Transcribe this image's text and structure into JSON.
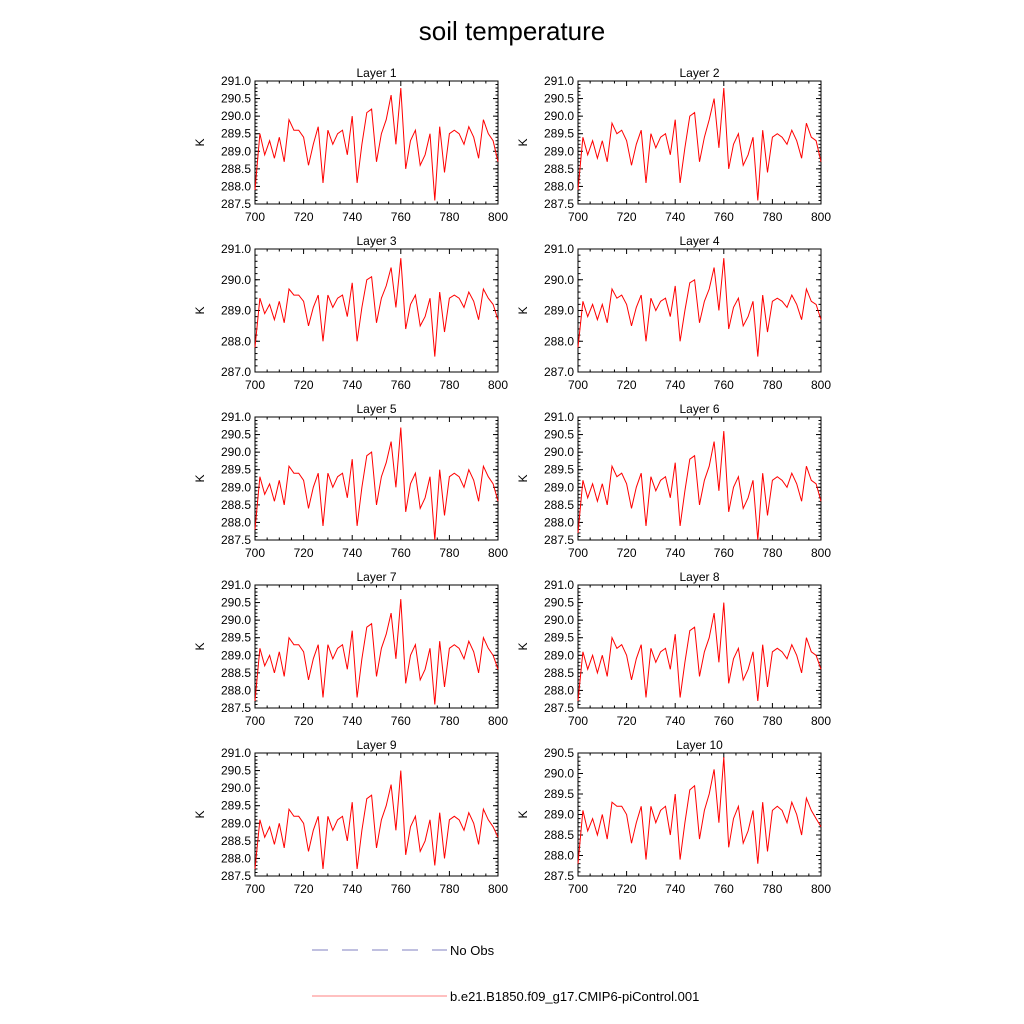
{
  "title": "soil temperature",
  "legend": [
    {
      "label": "No Obs",
      "color": "#8080c0",
      "style": "dashed"
    },
    {
      "label": "b.e21.B1850.f09_g17.CMIP6-piControl.001",
      "color": "#ff8080",
      "style": "solid"
    }
  ],
  "colors": {
    "series": "#ff0000"
  },
  "chart_data": [
    {
      "type": "line",
      "title": "Layer 1",
      "ylabel": "K",
      "xlim": [
        700,
        800
      ],
      "ylim": [
        287.5,
        291.0
      ],
      "xticks": [
        "700",
        "720",
        "740",
        "760",
        "780",
        "800"
      ],
      "yticks": [
        "287.5",
        "288.0",
        "288.5",
        "289.0",
        "289.5",
        "290.0",
        "290.5",
        "291.0"
      ],
      "x_start": 700,
      "x_step": 2,
      "series": [
        {
          "values": [
            287.9,
            289.5,
            288.9,
            289.3,
            288.8,
            289.4,
            288.7,
            289.9,
            289.6,
            289.6,
            289.4,
            288.6,
            289.2,
            289.7,
            288.1,
            289.6,
            289.2,
            289.5,
            289.6,
            288.9,
            290.0,
            288.1,
            289.2,
            290.1,
            290.2,
            288.7,
            289.5,
            289.9,
            290.6,
            289.2,
            290.8,
            288.5,
            289.3,
            289.6,
            288.6,
            288.9,
            289.5,
            287.6,
            289.7,
            288.4,
            289.5,
            289.6,
            289.5,
            289.2,
            289.7,
            289.4,
            288.8,
            289.9,
            289.5,
            289.3,
            288.7
          ]
        }
      ]
    },
    {
      "type": "line",
      "title": "Layer 2",
      "ylabel": "K",
      "xlim": [
        700,
        800
      ],
      "ylim": [
        287.5,
        291.0
      ],
      "xticks": [
        "700",
        "720",
        "740",
        "760",
        "780",
        "800"
      ],
      "yticks": [
        "287.5",
        "288.0",
        "288.5",
        "289.0",
        "289.5",
        "290.0",
        "290.5",
        "291.0"
      ],
      "x_start": 700,
      "x_step": 2,
      "series": [
        {
          "values": [
            287.9,
            289.4,
            288.9,
            289.3,
            288.8,
            289.3,
            288.7,
            289.8,
            289.5,
            289.6,
            289.3,
            288.6,
            289.2,
            289.6,
            288.1,
            289.5,
            289.1,
            289.4,
            289.5,
            288.9,
            289.9,
            288.1,
            289.1,
            290.0,
            290.1,
            288.7,
            289.4,
            289.9,
            290.5,
            289.1,
            290.8,
            288.5,
            289.2,
            289.5,
            288.6,
            288.9,
            289.4,
            287.6,
            289.6,
            288.4,
            289.4,
            289.5,
            289.4,
            289.2,
            289.6,
            289.3,
            288.8,
            289.8,
            289.4,
            289.3,
            288.7
          ]
        }
      ]
    },
    {
      "type": "line",
      "title": "Layer 3",
      "ylabel": "K",
      "xlim": [
        700,
        800
      ],
      "ylim": [
        287.0,
        291.0
      ],
      "xticks": [
        "700",
        "720",
        "740",
        "760",
        "780",
        "800"
      ],
      "yticks": [
        "287.0",
        "288.0",
        "289.0",
        "290.0",
        "291.0"
      ],
      "x_start": 700,
      "x_step": 2,
      "series": [
        {
          "values": [
            287.8,
            289.4,
            288.9,
            289.2,
            288.7,
            289.3,
            288.6,
            289.7,
            289.5,
            289.5,
            289.3,
            288.5,
            289.1,
            289.5,
            288.0,
            289.5,
            289.1,
            289.4,
            289.5,
            288.8,
            289.9,
            288.0,
            289.1,
            290.0,
            290.1,
            288.6,
            289.4,
            289.8,
            290.4,
            289.1,
            290.7,
            288.4,
            289.2,
            289.5,
            288.5,
            288.8,
            289.4,
            287.5,
            289.6,
            288.3,
            289.4,
            289.5,
            289.4,
            289.1,
            289.6,
            289.3,
            288.7,
            289.7,
            289.4,
            289.2,
            288.7
          ]
        }
      ]
    },
    {
      "type": "line",
      "title": "Layer 4",
      "ylabel": "K",
      "xlim": [
        700,
        800
      ],
      "ylim": [
        287.0,
        291.0
      ],
      "xticks": [
        "700",
        "720",
        "740",
        "760",
        "780",
        "800"
      ],
      "yticks": [
        "287.0",
        "288.0",
        "289.0",
        "290.0",
        "291.0"
      ],
      "x_start": 700,
      "x_step": 2,
      "series": [
        {
          "values": [
            287.8,
            289.3,
            288.8,
            289.2,
            288.7,
            289.2,
            288.6,
            289.7,
            289.4,
            289.5,
            289.2,
            288.5,
            289.1,
            289.5,
            288.0,
            289.4,
            289.0,
            289.3,
            289.4,
            288.8,
            289.8,
            288.0,
            289.0,
            289.9,
            290.0,
            288.6,
            289.3,
            289.7,
            290.4,
            289.0,
            290.7,
            288.4,
            289.1,
            289.4,
            288.5,
            288.8,
            289.3,
            287.5,
            289.5,
            288.3,
            289.3,
            289.4,
            289.3,
            289.1,
            289.5,
            289.2,
            288.7,
            289.7,
            289.3,
            289.2,
            288.7
          ]
        }
      ]
    },
    {
      "type": "line",
      "title": "Layer 5",
      "ylabel": "K",
      "xlim": [
        700,
        800
      ],
      "ylim": [
        287.5,
        291.0
      ],
      "xticks": [
        "700",
        "720",
        "740",
        "760",
        "780",
        "800"
      ],
      "yticks": [
        "287.5",
        "288.0",
        "288.5",
        "289.0",
        "289.5",
        "290.0",
        "290.5",
        "291.0"
      ],
      "x_start": 700,
      "x_step": 2,
      "series": [
        {
          "values": [
            287.8,
            289.3,
            288.8,
            289.1,
            288.6,
            289.2,
            288.5,
            289.6,
            289.4,
            289.4,
            289.2,
            288.4,
            289.0,
            289.4,
            287.9,
            289.4,
            289.0,
            289.3,
            289.4,
            288.7,
            289.8,
            287.9,
            289.0,
            289.9,
            290.0,
            288.5,
            289.3,
            289.7,
            290.3,
            289.0,
            290.7,
            288.3,
            289.1,
            289.4,
            288.4,
            288.7,
            289.3,
            287.5,
            289.5,
            288.2,
            289.3,
            289.4,
            289.3,
            289.0,
            289.5,
            289.2,
            288.6,
            289.6,
            289.3,
            289.1,
            288.6
          ]
        }
      ]
    },
    {
      "type": "line",
      "title": "Layer 6",
      "ylabel": "K",
      "xlim": [
        700,
        800
      ],
      "ylim": [
        287.5,
        291.0
      ],
      "xticks": [
        "700",
        "720",
        "740",
        "760",
        "780",
        "800"
      ],
      "yticks": [
        "287.5",
        "288.0",
        "288.5",
        "289.0",
        "289.5",
        "290.0",
        "290.5",
        "291.0"
      ],
      "x_start": 700,
      "x_step": 2,
      "series": [
        {
          "values": [
            287.7,
            289.2,
            288.7,
            289.1,
            288.6,
            289.1,
            288.5,
            289.6,
            289.3,
            289.4,
            289.1,
            288.4,
            289.0,
            289.4,
            287.9,
            289.3,
            288.9,
            289.2,
            289.3,
            288.7,
            289.7,
            287.9,
            288.9,
            289.8,
            289.9,
            288.5,
            289.2,
            289.6,
            290.3,
            288.9,
            290.6,
            288.3,
            289.0,
            289.3,
            288.4,
            288.7,
            289.2,
            287.5,
            289.4,
            288.2,
            289.2,
            289.3,
            289.2,
            289.0,
            289.4,
            289.1,
            288.6,
            289.6,
            289.2,
            289.1,
            288.6
          ]
        }
      ]
    },
    {
      "type": "line",
      "title": "Layer 7",
      "ylabel": "K",
      "xlim": [
        700,
        800
      ],
      "ylim": [
        287.5,
        291.0
      ],
      "xticks": [
        "700",
        "720",
        "740",
        "760",
        "780",
        "800"
      ],
      "yticks": [
        "287.5",
        "288.0",
        "288.5",
        "289.0",
        "289.5",
        "290.0",
        "290.5",
        "291.0"
      ],
      "x_start": 700,
      "x_step": 2,
      "series": [
        {
          "values": [
            287.7,
            289.2,
            288.7,
            289.0,
            288.5,
            289.1,
            288.4,
            289.5,
            289.3,
            289.3,
            289.1,
            288.3,
            288.9,
            289.3,
            287.8,
            289.3,
            288.9,
            289.2,
            289.3,
            288.6,
            289.7,
            287.8,
            288.9,
            289.8,
            289.9,
            288.4,
            289.2,
            289.6,
            290.2,
            288.9,
            290.6,
            288.2,
            289.0,
            289.3,
            288.3,
            288.6,
            289.2,
            287.6,
            289.4,
            288.1,
            289.2,
            289.3,
            289.2,
            288.9,
            289.4,
            289.1,
            288.5,
            289.5,
            289.2,
            289.0,
            288.6
          ]
        }
      ]
    },
    {
      "type": "line",
      "title": "Layer 8",
      "ylabel": "K",
      "xlim": [
        700,
        800
      ],
      "ylim": [
        287.5,
        291.0
      ],
      "xticks": [
        "700",
        "720",
        "740",
        "760",
        "780",
        "800"
      ],
      "yticks": [
        "287.5",
        "288.0",
        "288.5",
        "289.0",
        "289.5",
        "290.0",
        "290.5",
        "291.0"
      ],
      "x_start": 700,
      "x_step": 2,
      "series": [
        {
          "values": [
            287.7,
            289.1,
            288.6,
            289.0,
            288.5,
            289.0,
            288.4,
            289.5,
            289.2,
            289.3,
            289.0,
            288.3,
            288.9,
            289.3,
            287.8,
            289.2,
            288.8,
            289.1,
            289.2,
            288.6,
            289.6,
            287.8,
            288.8,
            289.7,
            289.8,
            288.4,
            289.1,
            289.5,
            290.2,
            288.8,
            290.5,
            288.2,
            288.9,
            289.2,
            288.3,
            288.6,
            289.1,
            287.7,
            289.3,
            288.1,
            289.1,
            289.2,
            289.1,
            288.9,
            289.3,
            289.0,
            288.5,
            289.5,
            289.1,
            289.0,
            288.6
          ]
        }
      ]
    },
    {
      "type": "line",
      "title": "Layer 9",
      "ylabel": "K",
      "xlim": [
        700,
        800
      ],
      "ylim": [
        287.5,
        291.0
      ],
      "xticks": [
        "700",
        "720",
        "740",
        "760",
        "780",
        "800"
      ],
      "yticks": [
        "287.5",
        "288.0",
        "288.5",
        "289.0",
        "289.5",
        "290.0",
        "290.5",
        "291.0"
      ],
      "x_start": 700,
      "x_step": 2,
      "series": [
        {
          "values": [
            287.7,
            289.1,
            288.6,
            288.9,
            288.4,
            289.0,
            288.3,
            289.4,
            289.2,
            289.2,
            289.0,
            288.2,
            288.8,
            289.2,
            287.7,
            289.2,
            288.8,
            289.1,
            289.2,
            288.5,
            289.6,
            287.7,
            288.8,
            289.7,
            289.8,
            288.3,
            289.1,
            289.5,
            290.1,
            288.8,
            290.5,
            288.1,
            288.9,
            289.2,
            288.2,
            288.5,
            289.1,
            287.8,
            289.3,
            288.0,
            289.1,
            289.2,
            289.1,
            288.8,
            289.3,
            289.0,
            288.4,
            289.4,
            289.1,
            288.9,
            288.6
          ]
        }
      ]
    },
    {
      "type": "line",
      "title": "Layer 10",
      "ylabel": "K",
      "xlim": [
        700,
        800
      ],
      "ylim": [
        287.5,
        290.5
      ],
      "xticks": [
        "700",
        "720",
        "740",
        "760",
        "780",
        "800"
      ],
      "yticks": [
        "287.5",
        "288.0",
        "288.5",
        "289.0",
        "289.5",
        "290.0",
        "290.5"
      ],
      "x_start": 700,
      "x_step": 2,
      "series": [
        {
          "values": [
            287.8,
            289.1,
            288.6,
            288.9,
            288.5,
            289.0,
            288.4,
            289.3,
            289.2,
            289.2,
            289.0,
            288.3,
            288.8,
            289.2,
            287.9,
            289.2,
            288.8,
            289.1,
            289.2,
            288.5,
            289.5,
            287.9,
            288.8,
            289.6,
            289.7,
            288.4,
            289.1,
            289.5,
            290.1,
            288.8,
            290.4,
            288.2,
            288.9,
            289.2,
            288.3,
            288.6,
            289.1,
            287.8,
            289.3,
            288.1,
            289.1,
            289.2,
            289.1,
            288.8,
            289.3,
            289.0,
            288.5,
            289.4,
            289.1,
            288.9,
            288.7
          ]
        }
      ]
    }
  ]
}
